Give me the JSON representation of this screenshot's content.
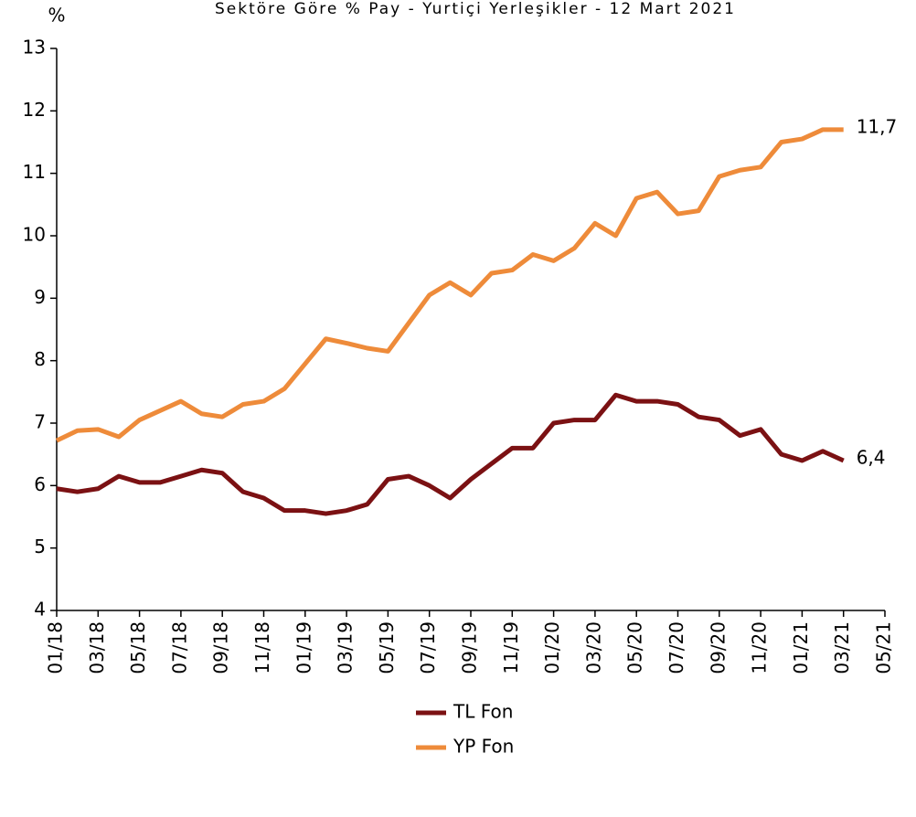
{
  "chart_data": {
    "type": "line",
    "title": "Sektöre Göre % Pay - Yurtiçi Yerleşikler - 12 Mart 2021",
    "y_label": "%",
    "x": [
      "01/18",
      "02/18",
      "03/18",
      "04/18",
      "05/18",
      "06/18",
      "07/18",
      "08/18",
      "09/18",
      "10/18",
      "11/18",
      "12/18",
      "01/19",
      "02/19",
      "03/19",
      "04/19",
      "05/19",
      "06/19",
      "07/19",
      "08/19",
      "09/19",
      "10/19",
      "11/19",
      "12/19",
      "01/20",
      "02/20",
      "03/20",
      "04/20",
      "05/20",
      "06/20",
      "07/20",
      "08/20",
      "09/20",
      "10/20",
      "11/20",
      "12/20",
      "01/21",
      "02/21",
      "03/21"
    ],
    "series": [
      {
        "name": "TL Fon",
        "color": "#7b1113",
        "values": [
          5.95,
          5.9,
          5.95,
          6.15,
          6.05,
          6.05,
          6.15,
          6.25,
          6.2,
          5.9,
          5.8,
          5.6,
          5.6,
          5.55,
          5.6,
          5.7,
          6.1,
          6.15,
          6.0,
          5.8,
          6.1,
          6.35,
          6.6,
          6.6,
          7.0,
          7.05,
          7.05,
          7.45,
          7.35,
          7.35,
          7.3,
          7.1,
          7.05,
          6.8,
          6.9,
          6.5,
          6.4,
          6.55,
          6.4
        ],
        "value_labels": [
          null,
          null,
          null,
          null,
          null,
          null,
          null,
          null,
          null,
          null,
          null,
          null,
          null,
          null,
          null,
          null,
          null,
          null,
          null,
          null,
          null,
          null,
          null,
          null,
          null,
          null,
          null,
          null,
          null,
          null,
          null,
          null,
          null,
          null,
          null,
          null,
          null,
          null,
          "6,4"
        ]
      },
      {
        "name": "YP Fon",
        "color": "#ee8b3a",
        "values": [
          6.72,
          6.88,
          6.9,
          6.78,
          7.05,
          7.2,
          7.35,
          7.15,
          7.1,
          7.3,
          7.35,
          7.55,
          7.95,
          8.35,
          8.28,
          8.2,
          8.15,
          8.6,
          9.05,
          9.25,
          9.05,
          9.4,
          9.45,
          9.7,
          9.6,
          9.8,
          10.2,
          10.0,
          10.6,
          10.7,
          10.35,
          10.4,
          10.95,
          11.05,
          11.1,
          11.5,
          11.55,
          11.7,
          11.7
        ],
        "value_labels": [
          null,
          null,
          null,
          null,
          null,
          null,
          null,
          null,
          null,
          null,
          null,
          null,
          null,
          null,
          null,
          null,
          null,
          null,
          null,
          null,
          null,
          null,
          null,
          null,
          null,
          null,
          null,
          null,
          null,
          null,
          null,
          null,
          null,
          null,
          null,
          null,
          null,
          null,
          "11,7"
        ]
      }
    ],
    "xlim": [
      "01/18",
      "05/21"
    ],
    "xticks": [
      "01/18",
      "03/18",
      "05/18",
      "07/18",
      "09/18",
      "11/18",
      "01/19",
      "03/19",
      "05/19",
      "07/19",
      "09/19",
      "11/19",
      "01/20",
      "03/20",
      "05/20",
      "07/20",
      "09/20",
      "11/20",
      "01/21",
      "03/21",
      "05/21"
    ],
    "ylim": [
      4,
      13
    ],
    "yticks": [
      4,
      5,
      6,
      7,
      8,
      9,
      10,
      11,
      12,
      13
    ],
    "grid": false,
    "legend": "bottom"
  }
}
